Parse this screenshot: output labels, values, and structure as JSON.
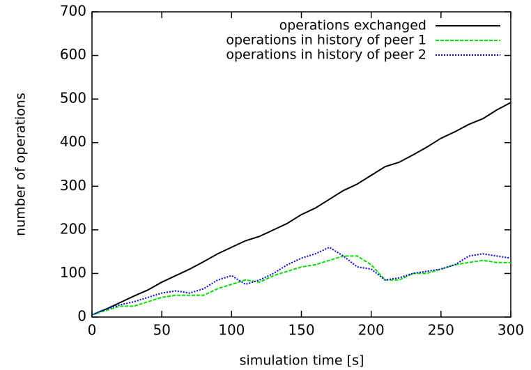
{
  "chart_data": {
    "type": "line",
    "x_label": "simulation time [s]",
    "y_label": "number of operations",
    "x": [
      0,
      10,
      20,
      30,
      40,
      50,
      60,
      70,
      80,
      90,
      100,
      110,
      120,
      130,
      140,
      150,
      160,
      170,
      180,
      190,
      200,
      210,
      220,
      230,
      240,
      250,
      260,
      270,
      280,
      290,
      300
    ],
    "series": [
      {
        "name": "operations exchanged",
        "color": "#000000",
        "line_style": "solid",
        "values": [
          5,
          18,
          33,
          48,
          62,
          80,
          95,
          110,
          127,
          145,
          160,
          175,
          185,
          200,
          215,
          235,
          250,
          270,
          290,
          305,
          325,
          345,
          355,
          372,
          390,
          410,
          425,
          442,
          455,
          475,
          492
        ]
      },
      {
        "name": "operations in history of peer 1",
        "color": "#00e000",
        "line_style": "dashed",
        "values": [
          5,
          15,
          25,
          25,
          35,
          45,
          50,
          50,
          50,
          65,
          75,
          85,
          80,
          95,
          105,
          115,
          120,
          130,
          140,
          140,
          120,
          85,
          85,
          100,
          100,
          110,
          120,
          125,
          130,
          125,
          125
        ]
      },
      {
        "name": "operations in history of peer 2",
        "color": "#0000ff",
        "line_style": "dotted",
        "values": [
          5,
          18,
          28,
          35,
          45,
          55,
          60,
          55,
          65,
          85,
          95,
          75,
          85,
          100,
          120,
          135,
          145,
          160,
          140,
          115,
          110,
          85,
          90,
          100,
          105,
          110,
          120,
          140,
          145,
          140,
          135
        ]
      }
    ],
    "xlim": [
      0,
      300
    ],
    "xticks": [
      0,
      50,
      100,
      150,
      200,
      250,
      300
    ],
    "ylim": [
      0,
      700
    ],
    "yticks": [
      0,
      100,
      200,
      300,
      400,
      500,
      600,
      700
    ],
    "grid": false,
    "legend": "top-right"
  }
}
